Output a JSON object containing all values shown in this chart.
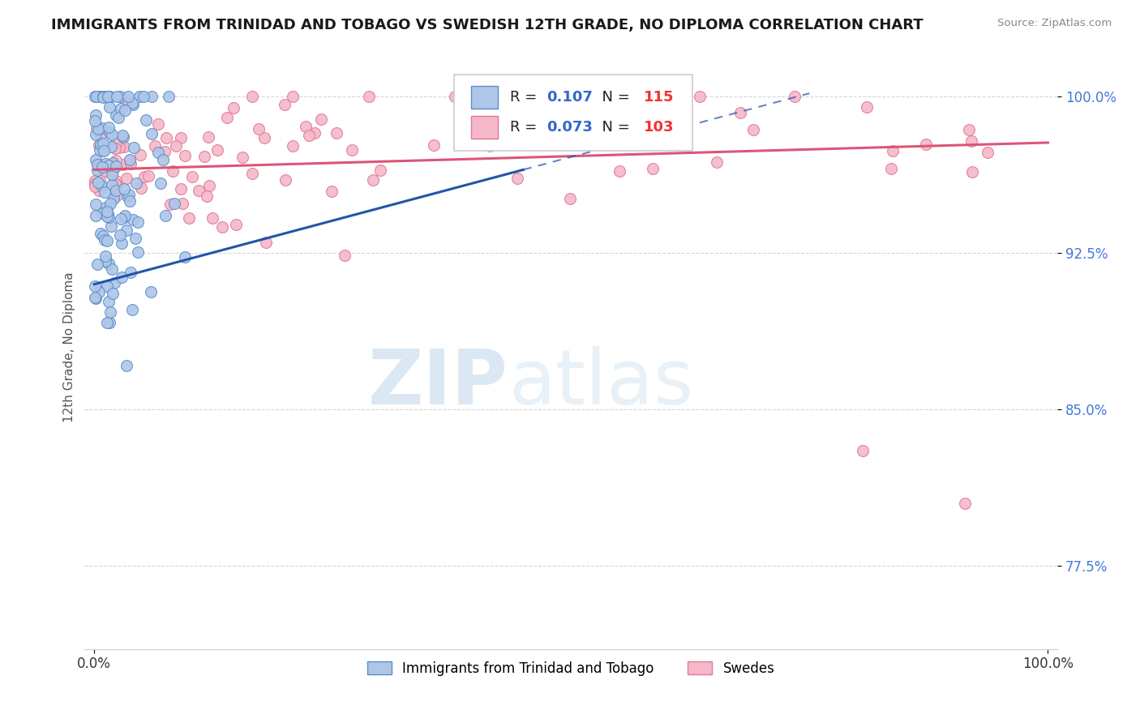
{
  "title": "IMMIGRANTS FROM TRINIDAD AND TOBAGO VS SWEDISH 12TH GRADE, NO DIPLOMA CORRELATION CHART",
  "source": "Source: ZipAtlas.com",
  "watermark_zip": "ZIP",
  "watermark_atlas": "atlas",
  "ylabel": "12th Grade, No Diploma",
  "ytick_labels": [
    "77.5%",
    "85.0%",
    "92.5%",
    "100.0%"
  ],
  "ytick_values": [
    0.775,
    0.85,
    0.925,
    1.0
  ],
  "xlim": [
    -0.01,
    1.01
  ],
  "ylim": [
    0.735,
    1.025
  ],
  "series1_label": "Immigrants from Trinidad and Tobago",
  "series1_R": "0.107",
  "series1_N": "115",
  "series1_color": "#aec6e8",
  "series1_edge": "#5b8fc9",
  "series2_label": "Swedes",
  "series2_R": "0.073",
  "series2_N": "103",
  "series2_color": "#f5b8c8",
  "series2_edge": "#e07898",
  "trend1_color": "#2255aa",
  "trend2_color": "#dd5577",
  "background_color": "#ffffff",
  "title_fontsize": 13,
  "scatter_size": 100,
  "grid_color": "#cccccc",
  "ytick_color": "#4477dd",
  "xtick_color": "#333333"
}
